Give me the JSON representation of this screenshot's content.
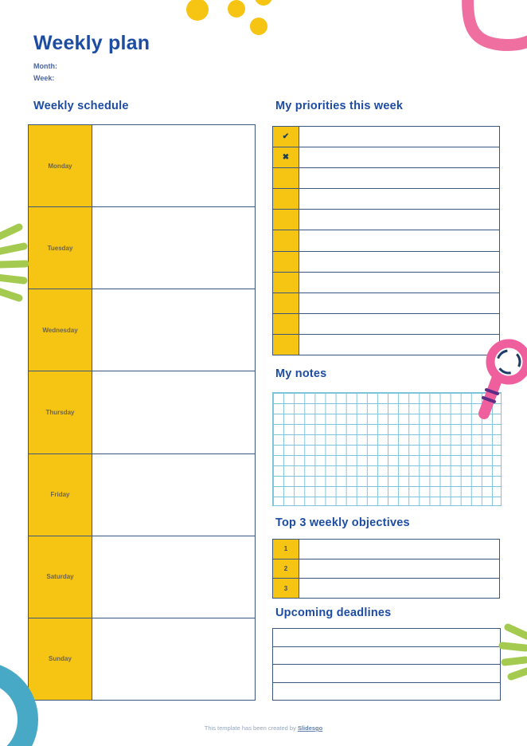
{
  "page": {
    "title": "Weekly plan",
    "month_label": "Month:",
    "week_label": "Week:"
  },
  "schedule": {
    "heading": "Weekly schedule",
    "days": [
      "Monday",
      "Tuesday",
      "Wednesday",
      "Thursday",
      "Friday",
      "Saturday",
      "Sunday"
    ]
  },
  "priorities": {
    "heading": "My priorities this week",
    "rows": [
      "check",
      "cross",
      "",
      "",
      "",
      "",
      "",
      "",
      "",
      "",
      ""
    ],
    "icons": {
      "check": "✔",
      "cross": "✖"
    }
  },
  "notes": {
    "heading": "My notes"
  },
  "objectives": {
    "heading": "Top 3 weekly objectives",
    "numbers": [
      "1",
      "2",
      "3"
    ]
  },
  "deadlines": {
    "heading": "Upcoming deadlines",
    "row_count": 4
  },
  "footer": {
    "text": "This template has been created by ",
    "link_label": "Slidesgo"
  },
  "colors": {
    "heading_blue": "#1D4CA3",
    "accent_yellow": "#F6C413",
    "table_border_navy": "#3D567E",
    "grid_teal": "#7CC4DB",
    "decoration_pink": "#EE6FA0",
    "magnifier_pink": "#EF5F9D",
    "stripe_purple": "#5B2D86",
    "decoration_green": "#A5CA50",
    "decoration_teal": "#47A9C5",
    "mark_navy": "#1D3D50",
    "day_label_color": "#6E6548",
    "number_navy": "#3E4A66",
    "footer_gray": "#98A6BB"
  }
}
